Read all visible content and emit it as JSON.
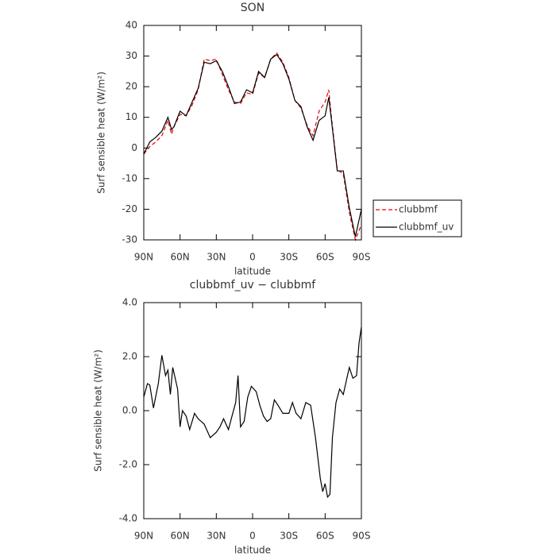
{
  "chart_data": [
    {
      "type": "line",
      "title": "SON",
      "xlabel": "latitude",
      "ylabel": "Surf sensible heat (W/m²)",
      "x": [
        90,
        85,
        80,
        75,
        70,
        67,
        65,
        60,
        55,
        50,
        45,
        40,
        35,
        30,
        25,
        20,
        15,
        10,
        5,
        0,
        -5,
        -10,
        -15,
        -20,
        -25,
        -30,
        -35,
        -40,
        -45,
        -50,
        -55,
        -60,
        -63,
        -65,
        -70,
        -75,
        -80,
        -85,
        -90
      ],
      "series": [
        {
          "name": "clubbmf",
          "color": "#e8000b",
          "style": "dashed",
          "values": [
            -2,
            0.5,
            2,
            4,
            9,
            4.5,
            7,
            11,
            10.5,
            14,
            19,
            29,
            28.5,
            29,
            24,
            19,
            15,
            14.5,
            18,
            17.5,
            24.5,
            23,
            29,
            31,
            28,
            23,
            15.5,
            13,
            7.5,
            4,
            12,
            15,
            19,
            11,
            -7,
            -8.5,
            -21,
            -30,
            -25
          ]
        },
        {
          "name": "clubbmf_uv",
          "color": "#000000",
          "style": "solid",
          "values": [
            -2,
            2,
            3.5,
            5.5,
            10,
            6,
            7,
            12,
            10.5,
            15,
            19.5,
            28,
            27.5,
            28.5,
            25,
            20,
            14.5,
            15,
            19,
            18,
            25,
            23,
            29,
            30.5,
            27.5,
            22.5,
            15.5,
            13.5,
            7,
            2.5,
            9,
            10.5,
            16.5,
            10,
            -7.5,
            -7.5,
            -19.5,
            -29,
            -20
          ]
        }
      ],
      "xlim": [
        90,
        -90
      ],
      "xticks": [
        {
          "value": 90,
          "label": "90N"
        },
        {
          "value": 60,
          "label": "60N"
        },
        {
          "value": 30,
          "label": "30N"
        },
        0,
        {
          "value": -30,
          "label": "30S"
        },
        {
          "value": -60,
          "label": "60S"
        },
        {
          "value": -90,
          "label": "90S"
        }
      ],
      "ylim": [
        -30,
        40
      ],
      "yticks": [
        -30,
        -20,
        -10,
        0,
        10,
        20,
        30,
        40
      ],
      "legend": "right"
    },
    {
      "type": "line",
      "title": "clubbmf_uv − clubbmf",
      "xlabel": "latitude",
      "ylabel": "Surf sensible heat (W/m²)",
      "x": [
        90,
        87,
        85,
        82,
        78,
        75,
        72,
        70,
        68,
        66,
        62,
        60,
        58,
        55,
        52,
        48,
        45,
        40,
        35,
        30,
        27,
        24,
        20,
        17,
        14,
        12,
        10,
        7,
        4,
        1,
        -3,
        -6,
        -9,
        -12,
        -15,
        -18,
        -21,
        -25,
        -30,
        -33,
        -36,
        -40,
        -44,
        -48,
        -52,
        -56,
        -58,
        -60,
        -62,
        -64,
        -66,
        -69,
        -72,
        -75,
        -78,
        -80,
        -83,
        -86,
        -88,
        -90
      ],
      "series": [
        {
          "color": "#000000",
          "style": "solid",
          "values": [
            0.5,
            1.0,
            0.95,
            0.1,
            1.0,
            2.05,
            1.3,
            1.5,
            0.6,
            1.6,
            0.8,
            -0.6,
            0.0,
            -0.2,
            -0.7,
            -0.1,
            -0.3,
            -0.5,
            -1.0,
            -0.8,
            -0.6,
            -0.3,
            -0.7,
            -0.2,
            0.3,
            1.3,
            -0.6,
            -0.4,
            0.5,
            0.9,
            0.7,
            0.2,
            -0.2,
            -0.4,
            -0.3,
            0.4,
            0.2,
            -0.1,
            -0.1,
            0.3,
            -0.1,
            -0.3,
            0.3,
            0.2,
            -1.0,
            -2.5,
            -3.0,
            -2.7,
            -3.2,
            -3.1,
            -1.0,
            0.3,
            0.8,
            0.6,
            1.2,
            1.6,
            1.2,
            1.3,
            2.5,
            3.1
          ]
        }
      ],
      "xlim": [
        90,
        -90
      ],
      "xticks": [
        {
          "value": 90,
          "label": "90N"
        },
        {
          "value": 60,
          "label": "60N"
        },
        {
          "value": 30,
          "label": "30N"
        },
        0,
        {
          "value": -30,
          "label": "30S"
        },
        {
          "value": -60,
          "label": "60S"
        },
        {
          "value": -90,
          "label": "90S"
        }
      ],
      "ylim": [
        -4,
        4
      ],
      "yticks": [
        {
          "value": -4,
          "label": "-4.0"
        },
        {
          "value": -2,
          "label": "-2.0"
        },
        {
          "value": 0,
          "label": "0.0"
        },
        {
          "value": 2,
          "label": "2.0"
        },
        {
          "value": 4,
          "label": "4.0"
        }
      ]
    }
  ]
}
